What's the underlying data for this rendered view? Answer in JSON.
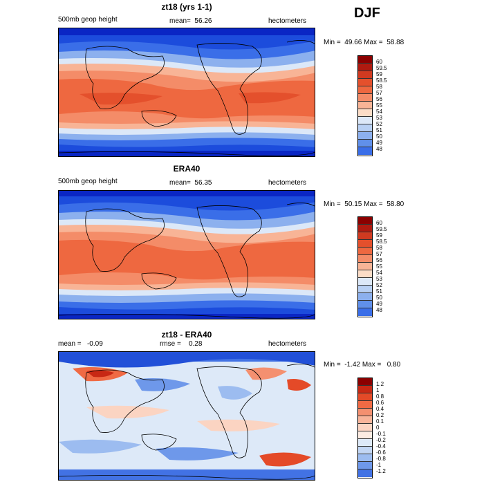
{
  "season": "DJF",
  "panels": [
    {
      "title": "zt18 (yrs 1-1)",
      "left_text": "500mb geop height",
      "mid_label": "mean=",
      "mid_value": "56.26",
      "units": "hectometers",
      "min_label": "Min =",
      "min_value": "49.66",
      "max_label": "Max =",
      "max_value": "58.88",
      "legend_labels": [
        "60",
        "59.5",
        "59",
        "58.5",
        "58",
        "57",
        "56",
        "55",
        "54",
        "53",
        "52",
        "51",
        "50",
        "49",
        "48"
      ],
      "legend_colors": [
        "#8b0000",
        "#b01a10",
        "#d03a20",
        "#e4502c",
        "#ee6840",
        "#f48c68",
        "#f8b496",
        "#fbdcc6",
        "#dce8f8",
        "#b8d0f4",
        "#8cb0ee",
        "#6090ea",
        "#3a6ee8",
        "#1c4cdc",
        "#0a26c4",
        "#00108c"
      ]
    },
    {
      "title": "ERA40",
      "left_text": "500mb geop height",
      "mid_label": "mean=",
      "mid_value": "56.35",
      "units": "hectometers",
      "min_label": "Min =",
      "min_value": "50.15",
      "max_label": "Max =",
      "max_value": "58.80",
      "legend_labels": [
        "60",
        "59.5",
        "59",
        "58.5",
        "58",
        "57",
        "56",
        "55",
        "54",
        "53",
        "52",
        "51",
        "50",
        "49",
        "48"
      ],
      "legend_colors": [
        "#8b0000",
        "#b01a10",
        "#d03a20",
        "#e4502c",
        "#ee6840",
        "#f48c68",
        "#f8b496",
        "#fbdcc6",
        "#dce8f8",
        "#b8d0f4",
        "#8cb0ee",
        "#6090ea",
        "#3a6ee8",
        "#1c4cdc",
        "#0a26c4",
        "#00108c"
      ]
    },
    {
      "title": "zt18 - ERA40",
      "left_text": "mean =   -0.09",
      "mid_label": "rmse =",
      "mid_value": "0.28",
      "units": "hectometers",
      "min_label": "Min =",
      "min_value": "-1.42",
      "max_label": "Max =",
      "max_value": "0.80",
      "legend_labels": [
        "1.2",
        "1",
        "0.8",
        "0.6",
        "0.4",
        "0.2",
        "0.1",
        "0",
        "-0.1",
        "-0.2",
        "-0.4",
        "-0.6",
        "-0.8",
        "-1",
        "-1.2"
      ],
      "legend_colors": [
        "#8b0000",
        "#c82814",
        "#e44a28",
        "#f06a44",
        "#f49070",
        "#f8b49a",
        "#fbd4c2",
        "#fdece2",
        "#dde9f8",
        "#c2d6f4",
        "#9cbcf0",
        "#6e98ea",
        "#4272e4",
        "#2250d8",
        "#0c2cc0",
        "#00108c"
      ]
    }
  ]
}
